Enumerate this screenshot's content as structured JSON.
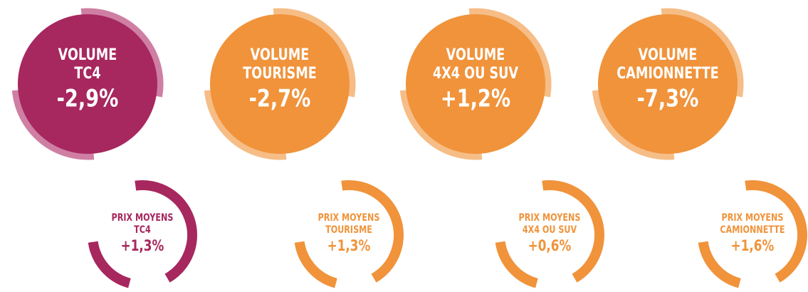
{
  "volumes": [
    {
      "title": [
        "VOLUME",
        "TC4"
      ],
      "value": "-2,9%",
      "theme": "purple"
    },
    {
      "title": [
        "VOLUME",
        "TOURISME"
      ],
      "value": "-2,7%",
      "theme": "orange"
    },
    {
      "title": [
        "VOLUME",
        "4X4 OU SUV"
      ],
      "value": "+1,2%",
      "theme": "orange"
    },
    {
      "title": [
        "VOLUME",
        "CAMIONNETTE"
      ],
      "value": "-7,3%",
      "theme": "orange"
    }
  ],
  "prices": [
    {
      "title": [
        "PRIX MOYENS",
        "TC4"
      ],
      "value": "+1,3%",
      "theme": "purple"
    },
    {
      "title": [
        "PRIX MOYENS",
        "TOURISME"
      ],
      "value": "+1,3%",
      "theme": "orange"
    },
    {
      "title": [
        "PRIX MOYENS",
        "4X4 OU SUV"
      ],
      "value": "+0,6%",
      "theme": "orange"
    },
    {
      "title": [
        "PRIX MOYENS",
        "CAMIONNETTE"
      ],
      "value": "+1,6%",
      "theme": "orange"
    }
  ]
}
